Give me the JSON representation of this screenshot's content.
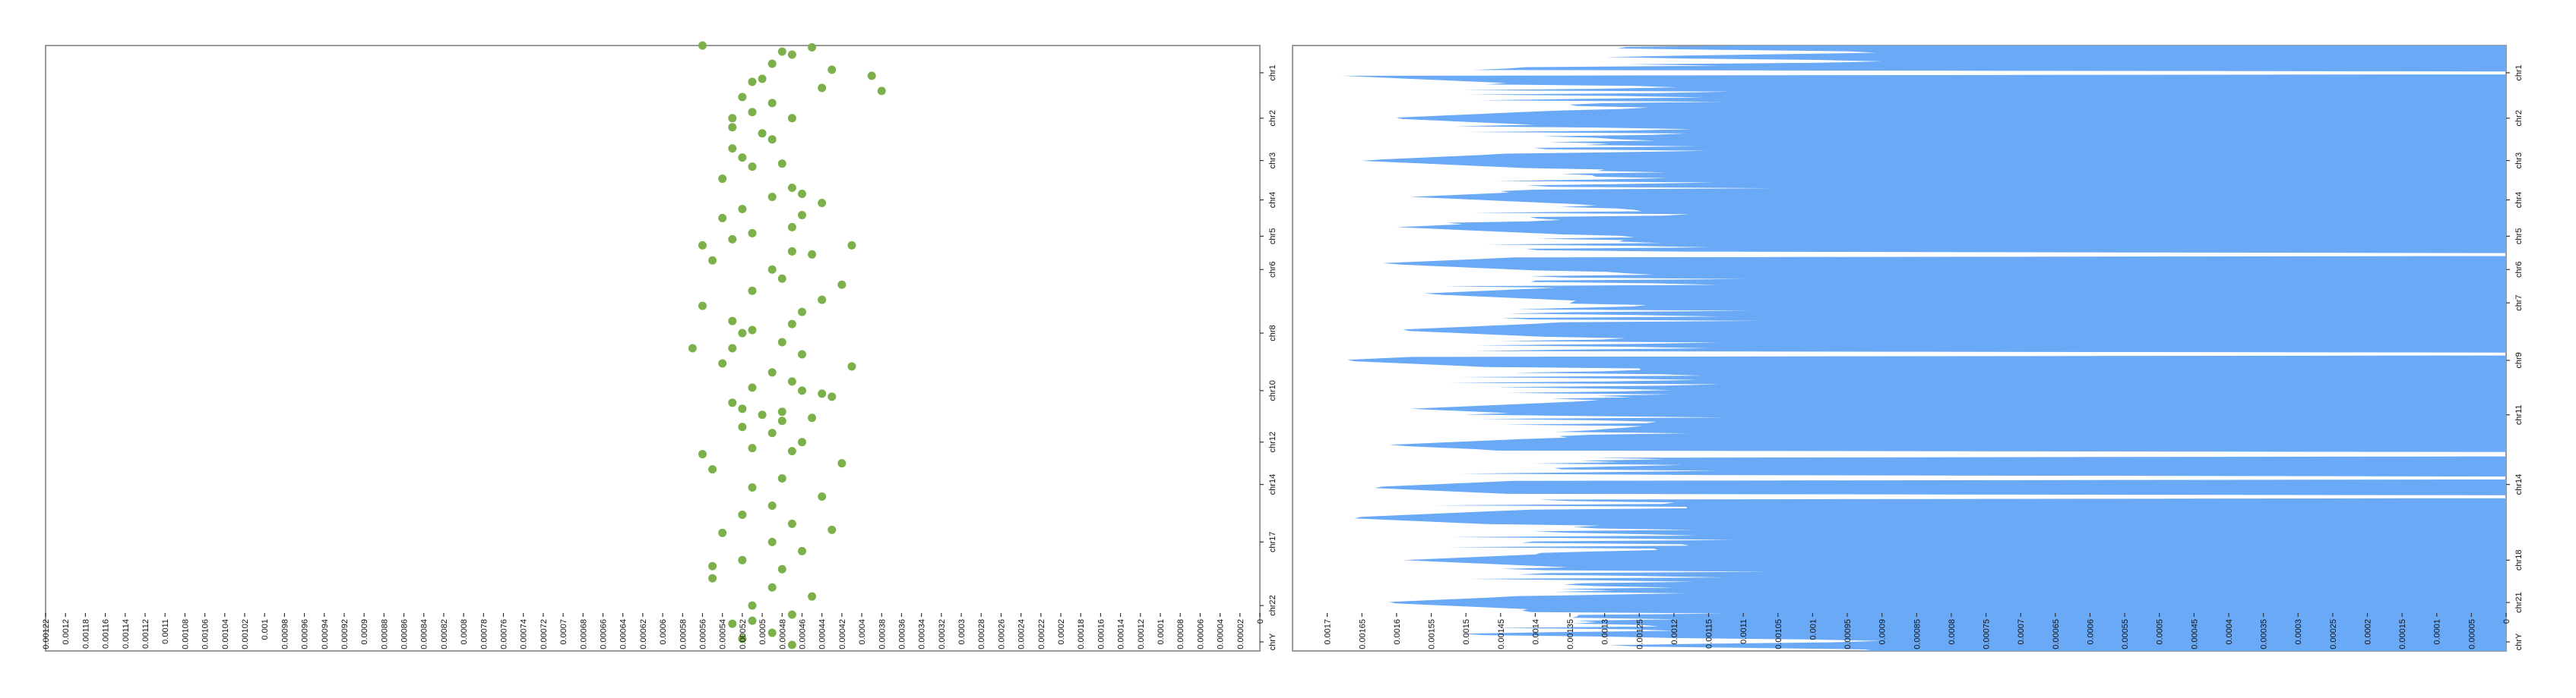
{
  "chart_data": [
    {
      "type": "scatter",
      "orientation": "horizontal",
      "x_axis": "reversed",
      "color": "#7cb04a",
      "xlim": [
        0,
        0.00122
      ],
      "x_ticks": [
        "0.00122",
        "0.0012",
        "0.00118",
        "0.00116",
        "0.00114",
        "0.00112",
        "0.0011",
        "0.00108",
        "0.00106",
        "0.00104",
        "0.00102",
        "0.001",
        "0.00098",
        "0.00096",
        "0.00094",
        "0.00092",
        "0.0009",
        "0.00088",
        "0.00086",
        "0.00084",
        "0.00082",
        "0.0008",
        "0.00078",
        "0.00076",
        "0.00074",
        "0.00072",
        "0.0007",
        "0.00068",
        "0.00066",
        "0.00064",
        "0.00062",
        "0.0006",
        "0.00058",
        "0.00056",
        "0.00054",
        "0.00052",
        "0.0005",
        "0.00048",
        "0.00046",
        "0.00044",
        "0.00042",
        "0.0004",
        "0.00038",
        "0.00036",
        "0.00034",
        "0.00032",
        "0.0003",
        "0.00028",
        "0.00026",
        "0.00024",
        "0.00022",
        "0.0002",
        "0.00018",
        "0.00016",
        "0.00014",
        "0.00012",
        "0.0001",
        "0.00008",
        "0.00006",
        "0.00004",
        "0.00002",
        "0"
      ],
      "chromosomes": [
        {
          "label": "chr1",
          "pos": 0.045
        },
        {
          "label": "chr2",
          "pos": 0.12
        },
        {
          "label": "chr3",
          "pos": 0.19
        },
        {
          "label": "chr4",
          "pos": 0.255
        },
        {
          "label": "chr5",
          "pos": 0.315
        },
        {
          "label": "chr6",
          "pos": 0.37
        },
        {
          "label": "chr8",
          "pos": 0.475
        },
        {
          "label": "chr10",
          "pos": 0.57
        },
        {
          "label": "chr12",
          "pos": 0.655
        },
        {
          "label": "chr14",
          "pos": 0.725
        },
        {
          "label": "chr17",
          "pos": 0.82
        },
        {
          "label": "chr22",
          "pos": 0.925
        },
        {
          "label": "chrY",
          "pos": 0.985
        }
      ],
      "points": [
        [
          0.00056,
          0.0
        ],
        [
          0.00045,
          0.003
        ],
        [
          0.00048,
          0.01
        ],
        [
          0.00047,
          0.015
        ],
        [
          0.00049,
          0.03
        ],
        [
          0.00043,
          0.04
        ],
        [
          0.0005,
          0.055
        ],
        [
          0.00051,
          0.06
        ],
        [
          0.00044,
          0.07
        ],
        [
          0.00038,
          0.075
        ],
        [
          0.00052,
          0.085
        ],
        [
          0.00049,
          0.095
        ],
        [
          0.00051,
          0.11
        ],
        [
          0.00047,
          0.12
        ],
        [
          0.00053,
          0.135
        ],
        [
          0.0005,
          0.145
        ],
        [
          0.00049,
          0.155
        ],
        [
          0.00053,
          0.17
        ],
        [
          0.00052,
          0.185
        ],
        [
          0.00048,
          0.195
        ],
        [
          0.00051,
          0.2
        ],
        [
          0.00054,
          0.22
        ],
        [
          0.00047,
          0.235
        ],
        [
          0.00046,
          0.245
        ],
        [
          0.00049,
          0.25
        ],
        [
          0.00044,
          0.26
        ],
        [
          0.00052,
          0.27
        ],
        [
          0.00054,
          0.285
        ],
        [
          0.00047,
          0.3
        ],
        [
          0.00051,
          0.31
        ],
        [
          0.00053,
          0.32
        ],
        [
          0.00041,
          0.33
        ],
        [
          0.00045,
          0.345
        ],
        [
          0.00055,
          0.355
        ],
        [
          0.00049,
          0.37
        ],
        [
          0.00048,
          0.385
        ],
        [
          0.00042,
          0.395
        ],
        [
          0.00051,
          0.405
        ],
        [
          0.00044,
          0.42
        ],
        [
          0.00056,
          0.43
        ],
        [
          0.00046,
          0.44
        ],
        [
          0.00053,
          0.455
        ],
        [
          0.00047,
          0.46
        ],
        [
          0.00052,
          0.475
        ],
        [
          0.00048,
          0.49
        ],
        [
          0.00057,
          0.5
        ],
        [
          0.00046,
          0.51
        ],
        [
          0.00054,
          0.525
        ],
        [
          0.00049,
          0.54
        ],
        [
          0.00047,
          0.555
        ],
        [
          0.00051,
          0.565
        ],
        [
          0.00044,
          0.575
        ],
        [
          0.00053,
          0.59
        ],
        [
          0.00048,
          0.605
        ],
        [
          0.00045,
          0.615
        ],
        [
          0.00052,
          0.63
        ],
        [
          0.00049,
          0.64
        ],
        [
          0.00046,
          0.655
        ],
        [
          0.00051,
          0.665
        ],
        [
          0.00056,
          0.675
        ],
        [
          0.00042,
          0.69
        ],
        [
          0.00055,
          0.7
        ],
        [
          0.00048,
          0.715
        ],
        [
          0.00051,
          0.73
        ],
        [
          0.00044,
          0.745
        ],
        [
          0.00049,
          0.76
        ],
        [
          0.00052,
          0.775
        ],
        [
          0.00047,
          0.79
        ],
        [
          0.00054,
          0.805
        ],
        [
          0.00049,
          0.82
        ],
        [
          0.00046,
          0.835
        ],
        [
          0.00052,
          0.85
        ],
        [
          0.00048,
          0.865
        ],
        [
          0.00055,
          0.88
        ],
        [
          0.00049,
          0.895
        ],
        [
          0.00045,
          0.91
        ],
        [
          0.00051,
          0.925
        ],
        [
          0.00047,
          0.94
        ],
        [
          0.00053,
          0.955
        ],
        [
          0.00049,
          0.97
        ],
        [
          0.00052,
          0.98
        ],
        [
          0.00047,
          0.99
        ],
        [
          0.00044,
          0.42
        ],
        [
          0.00046,
          0.57
        ],
        [
          0.00043,
          0.58
        ],
        [
          0.0005,
          0.61
        ],
        [
          0.00048,
          0.62
        ],
        [
          0.00051,
          0.47
        ],
        [
          0.00047,
          0.34
        ],
        [
          0.00053,
          0.5
        ],
        [
          0.00039,
          0.05
        ],
        [
          0.00053,
          0.12
        ],
        [
          0.00046,
          0.28
        ],
        [
          0.00056,
          0.33
        ],
        [
          0.00041,
          0.53
        ],
        [
          0.00052,
          0.6
        ],
        [
          0.00047,
          0.67
        ],
        [
          0.00043,
          0.8
        ],
        [
          0.00055,
          0.86
        ],
        [
          0.00051,
          0.95
        ]
      ]
    },
    {
      "type": "area",
      "orientation": "horizontal",
      "x_axis": "reversed",
      "color": "#6aa9f5",
      "xlim": [
        0,
        0.00175
      ],
      "x_ticks": [
        "0.0017",
        "0.00165",
        "0.0016",
        "0.00155",
        "0.0015",
        "0.00145",
        "0.0014",
        "0.00135",
        "0.0013",
        "0.00125",
        "0.0012",
        "0.00115",
        "0.0011",
        "0.00105",
        "0.001",
        "0.00095",
        "0.0009",
        "0.00085",
        "0.0008",
        "0.00075",
        "0.0007",
        "0.00065",
        "0.0006",
        "0.00055",
        "0.0005",
        "0.00045",
        "0.0004",
        "0.00035",
        "0.0003",
        "0.00025",
        "0.0002",
        "0.00015",
        "0.0001",
        "0.00005",
        "0"
      ],
      "chromosomes": [
        {
          "label": "chr1",
          "pos": 0.045
        },
        {
          "label": "chr2",
          "pos": 0.12
        },
        {
          "label": "chr3",
          "pos": 0.19
        },
        {
          "label": "chr4",
          "pos": 0.255
        },
        {
          "label": "chr5",
          "pos": 0.315
        },
        {
          "label": "chr6",
          "pos": 0.37
        },
        {
          "label": "chr7",
          "pos": 0.425
        },
        {
          "label": "chr9",
          "pos": 0.52
        },
        {
          "label": "chr11",
          "pos": 0.61
        },
        {
          "label": "chr14",
          "pos": 0.725
        },
        {
          "label": "chr18",
          "pos": 0.85
        },
        {
          "label": "chr21",
          "pos": 0.92
        },
        {
          "label": "chrY",
          "pos": 0.985
        }
      ],
      "profile": {
        "base": 0.0013,
        "spikes": [
          [
            0.05,
            0.00168
          ],
          [
            0.12,
            0.00162
          ],
          [
            0.19,
            0.00166
          ],
          [
            0.25,
            0.00158
          ],
          [
            0.3,
            0.0016
          ],
          [
            0.36,
            0.00163
          ],
          [
            0.41,
            0.00157
          ],
          [
            0.47,
            0.00161
          ],
          [
            0.52,
            0.00169
          ],
          [
            0.6,
            0.00158
          ],
          [
            0.66,
            0.00162
          ],
          [
            0.73,
            0.00165
          ],
          [
            0.78,
            0.00168
          ],
          [
            0.85,
            0.00159
          ],
          [
            0.92,
            0.00163
          ],
          [
            0.98,
            0.0016
          ]
        ],
        "gaps": [
          0.045,
          0.345,
          0.51,
          0.675,
          0.715,
          0.745
        ]
      }
    }
  ]
}
